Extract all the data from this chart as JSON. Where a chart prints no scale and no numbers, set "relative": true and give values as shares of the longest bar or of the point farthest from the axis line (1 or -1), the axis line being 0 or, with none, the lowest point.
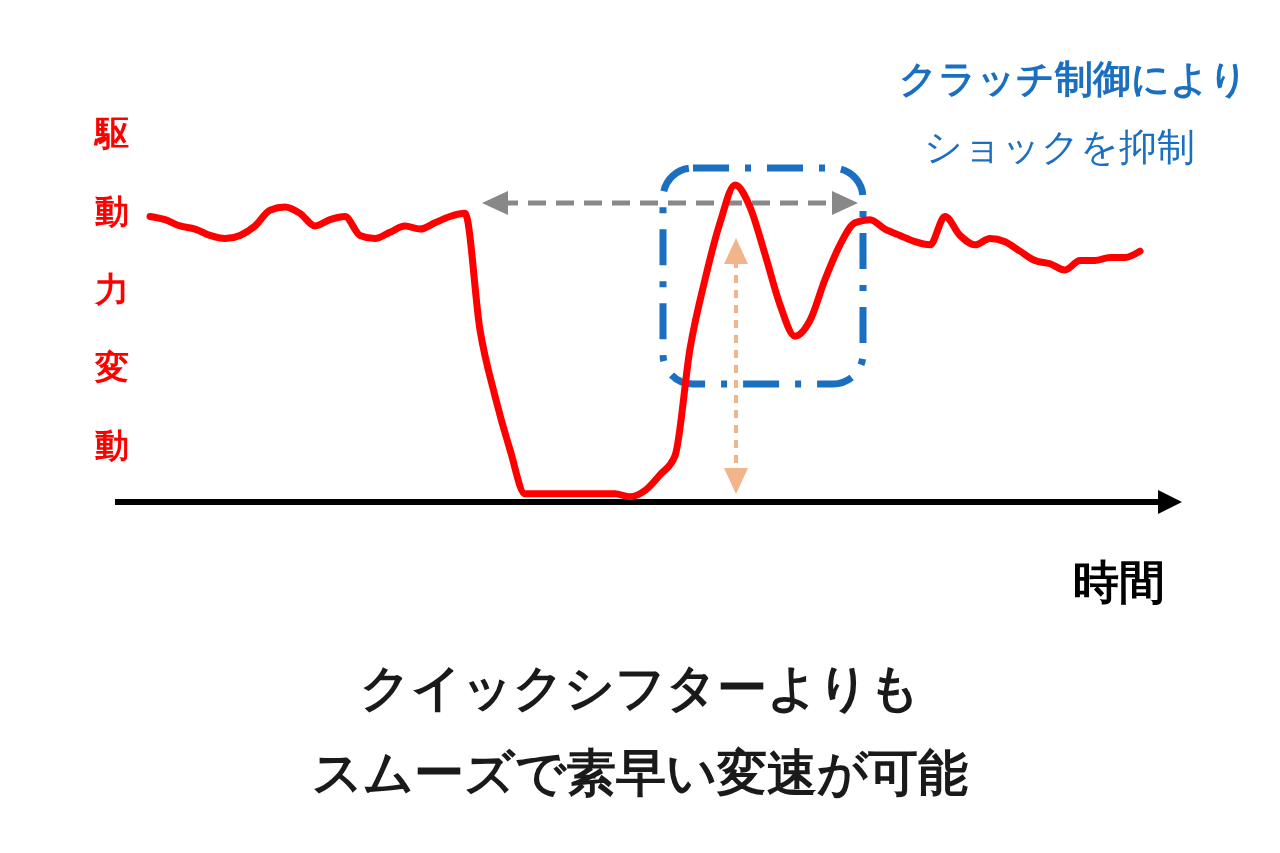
{
  "chart_data": {
    "type": "line",
    "relative": true,
    "ylabel": "駆動力変動",
    "xlabel": "時間",
    "marker": "none",
    "line_style": "solid",
    "categories": [
      null,
      null,
      null,
      null,
      null,
      null,
      null,
      null,
      null,
      null,
      null,
      null,
      null,
      null,
      null,
      null,
      null,
      null,
      null,
      null,
      null,
      null,
      null,
      null,
      null,
      null,
      null,
      null,
      null,
      null,
      null,
      null,
      null,
      null,
      null,
      null,
      null,
      null,
      null,
      null,
      null,
      null,
      null,
      null,
      null,
      null,
      null,
      null,
      null,
      null,
      null,
      null,
      null,
      null,
      null,
      null,
      null,
      null,
      null,
      null,
      null,
      null,
      null,
      null,
      null,
      null,
      null
    ],
    "series": [
      {
        "color": "#ff0000",
        "values": [
          0.9,
          0.89,
          0.87,
          0.86,
          0.84,
          0.83,
          0.84,
          0.87,
          0.92,
          0.93,
          0.91,
          0.87,
          0.89,
          0.9,
          0.84,
          0.83,
          0.85,
          0.87,
          0.86,
          0.88,
          0.9,
          0.91,
          0.54,
          0.33,
          0.16,
          0.02,
          0.02,
          0.02,
          0.02,
          0.02,
          0.02,
          0.02,
          0.01,
          0.03,
          0.08,
          0.14,
          0.48,
          0.7,
          0.88,
          1,
          0.93,
          0.78,
          0.62,
          0.52,
          0.57,
          0.7,
          0.81,
          0.88,
          0.89,
          0.86,
          0.84,
          0.82,
          0.81,
          0.9,
          0.84,
          0.81,
          0.83,
          0.82,
          0.79,
          0.76,
          0.75,
          0.73,
          0.76,
          0.76,
          0.77,
          0.77,
          0.79
        ]
      }
    ],
    "annotations": [
      "クラッチ制御により",
      "ショックを抑制",
      "クイックシフターよりも",
      "スムーズで素早い変速が可能"
    ]
  }
}
